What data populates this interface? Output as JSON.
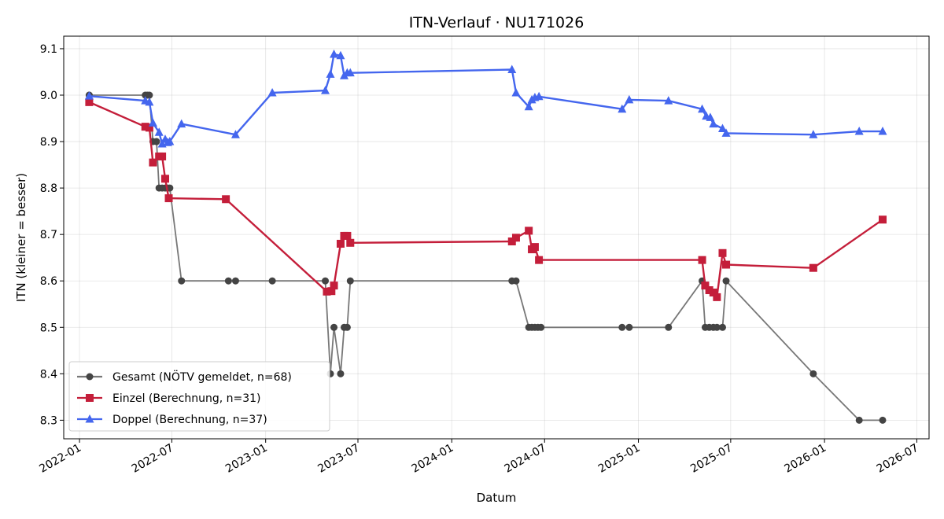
{
  "chart_data": {
    "type": "line",
    "title": "ITN-Verlauf · NU171026",
    "xlabel": "Datum",
    "ylabel": "ITN  (kleiner = besser)",
    "xlim": [
      "2021-12-01",
      "2026-07-25"
    ],
    "ylim": [
      8.26,
      9.127
    ],
    "x_ticks": [
      "2022-01",
      "2022-07",
      "2023-01",
      "2023-07",
      "2024-01",
      "2024-07",
      "2025-01",
      "2025-07",
      "2026-01",
      "2026-07"
    ],
    "y_ticks": [
      8.3,
      8.4,
      8.5,
      8.6,
      8.7,
      8.8,
      8.9,
      9.0,
      9.1
    ],
    "grid": true,
    "legend_position": "lower-left",
    "series": [
      {
        "name": "Gesamt (NÖTV gemeldet, n=68)",
        "color": "#444444",
        "marker": "circle",
        "points": [
          [
            "2022-01-20",
            9.0
          ],
          [
            "2022-01-20",
            9.0
          ],
          [
            "2022-05-10",
            9.0
          ],
          [
            "2022-05-14",
            9.0
          ],
          [
            "2022-05-18",
            9.0
          ],
          [
            "2022-05-25",
            8.9
          ],
          [
            "2022-06-01",
            8.9
          ],
          [
            "2022-06-06",
            8.8
          ],
          [
            "2022-06-12",
            8.8
          ],
          [
            "2022-06-18",
            8.8
          ],
          [
            "2022-06-23",
            8.8
          ],
          [
            "2022-06-27",
            8.8
          ],
          [
            "2022-07-20",
            8.6
          ],
          [
            "2022-10-20",
            8.6
          ],
          [
            "2022-11-03",
            8.6
          ],
          [
            "2023-01-14",
            8.6
          ],
          [
            "2023-04-28",
            8.6
          ],
          [
            "2023-05-08",
            8.4
          ],
          [
            "2023-05-15",
            8.5
          ],
          [
            "2023-05-28",
            8.4
          ],
          [
            "2023-06-04",
            8.5
          ],
          [
            "2023-06-10",
            8.5
          ],
          [
            "2023-06-16",
            8.6
          ],
          [
            "2024-04-28",
            8.6
          ],
          [
            "2024-05-06",
            8.6
          ],
          [
            "2024-05-31",
            8.5
          ],
          [
            "2024-06-06",
            8.5
          ],
          [
            "2024-06-12",
            8.5
          ],
          [
            "2024-06-18",
            8.5
          ],
          [
            "2024-06-24",
            8.5
          ],
          [
            "2024-11-30",
            8.5
          ],
          [
            "2024-12-14",
            8.5
          ],
          [
            "2025-03-01",
            8.5
          ],
          [
            "2025-05-06",
            8.6
          ],
          [
            "2025-05-12",
            8.5
          ],
          [
            "2025-05-20",
            8.5
          ],
          [
            "2025-05-28",
            8.5
          ],
          [
            "2025-06-04",
            8.5
          ],
          [
            "2025-06-15",
            8.5
          ],
          [
            "2025-06-22",
            8.6
          ],
          [
            "2025-12-10",
            8.4
          ],
          [
            "2026-03-10",
            8.3
          ],
          [
            "2026-04-25",
            8.3
          ]
        ]
      },
      {
        "name": "Einzel (Berechnung, n=31)",
        "color": "#c41e3a",
        "marker": "square",
        "points": [
          [
            "2022-01-20",
            8.985
          ],
          [
            "2022-05-10",
            8.932
          ],
          [
            "2022-05-18",
            8.93
          ],
          [
            "2022-05-25",
            8.855
          ],
          [
            "2022-06-06",
            8.868
          ],
          [
            "2022-06-12",
            8.868
          ],
          [
            "2022-06-18",
            8.82
          ],
          [
            "2022-06-25",
            8.778
          ],
          [
            "2022-10-15",
            8.776
          ],
          [
            "2023-05-01",
            8.577
          ],
          [
            "2023-05-10",
            8.578
          ],
          [
            "2023-05-15",
            8.59
          ],
          [
            "2023-05-28",
            8.68
          ],
          [
            "2023-06-04",
            8.697
          ],
          [
            "2023-06-10",
            8.697
          ],
          [
            "2023-06-16",
            8.682
          ],
          [
            "2024-04-28",
            8.685
          ],
          [
            "2024-05-06",
            8.693
          ],
          [
            "2024-05-31",
            8.708
          ],
          [
            "2024-06-06",
            8.668
          ],
          [
            "2024-06-12",
            8.673
          ],
          [
            "2024-06-20",
            8.645
          ],
          [
            "2025-05-06",
            8.645
          ],
          [
            "2025-05-12",
            8.59
          ],
          [
            "2025-05-20",
            8.58
          ],
          [
            "2025-05-28",
            8.575
          ],
          [
            "2025-06-04",
            8.565
          ],
          [
            "2025-06-15",
            8.66
          ],
          [
            "2025-06-22",
            8.635
          ],
          [
            "2025-12-10",
            8.628
          ],
          [
            "2026-04-25",
            8.732
          ]
        ]
      },
      {
        "name": "Doppel (Berechnung, n=37)",
        "color": "#4466ee",
        "marker": "triangle",
        "points": [
          [
            "2022-01-20",
            8.998
          ],
          [
            "2022-05-10",
            8.988
          ],
          [
            "2022-05-18",
            8.985
          ],
          [
            "2022-05-25",
            8.94
          ],
          [
            "2022-06-06",
            8.92
          ],
          [
            "2022-06-12",
            8.895
          ],
          [
            "2022-06-18",
            8.905
          ],
          [
            "2022-06-23",
            8.898
          ],
          [
            "2022-06-27",
            8.9
          ],
          [
            "2022-07-20",
            8.938
          ],
          [
            "2022-11-03",
            8.915
          ],
          [
            "2023-01-14",
            9.005
          ],
          [
            "2023-04-28",
            9.01
          ],
          [
            "2023-05-08",
            9.045
          ],
          [
            "2023-05-15",
            9.088
          ],
          [
            "2023-05-28",
            9.085
          ],
          [
            "2023-06-04",
            9.042
          ],
          [
            "2023-06-10",
            9.048
          ],
          [
            "2023-06-16",
            9.048
          ],
          [
            "2024-04-28",
            9.055
          ],
          [
            "2024-05-06",
            9.005
          ],
          [
            "2024-05-31",
            8.975
          ],
          [
            "2024-06-06",
            8.99
          ],
          [
            "2024-06-12",
            8.995
          ],
          [
            "2024-06-20",
            8.997
          ],
          [
            "2024-11-30",
            8.97
          ],
          [
            "2024-12-14",
            8.99
          ],
          [
            "2025-03-01",
            8.988
          ],
          [
            "2025-05-06",
            8.97
          ],
          [
            "2025-05-14",
            8.955
          ],
          [
            "2025-05-22",
            8.952
          ],
          [
            "2025-05-28",
            8.938
          ],
          [
            "2025-06-15",
            8.928
          ],
          [
            "2025-06-22",
            8.918
          ],
          [
            "2025-12-10",
            8.915
          ],
          [
            "2026-03-10",
            8.922
          ],
          [
            "2026-04-25",
            8.922
          ]
        ]
      }
    ]
  }
}
